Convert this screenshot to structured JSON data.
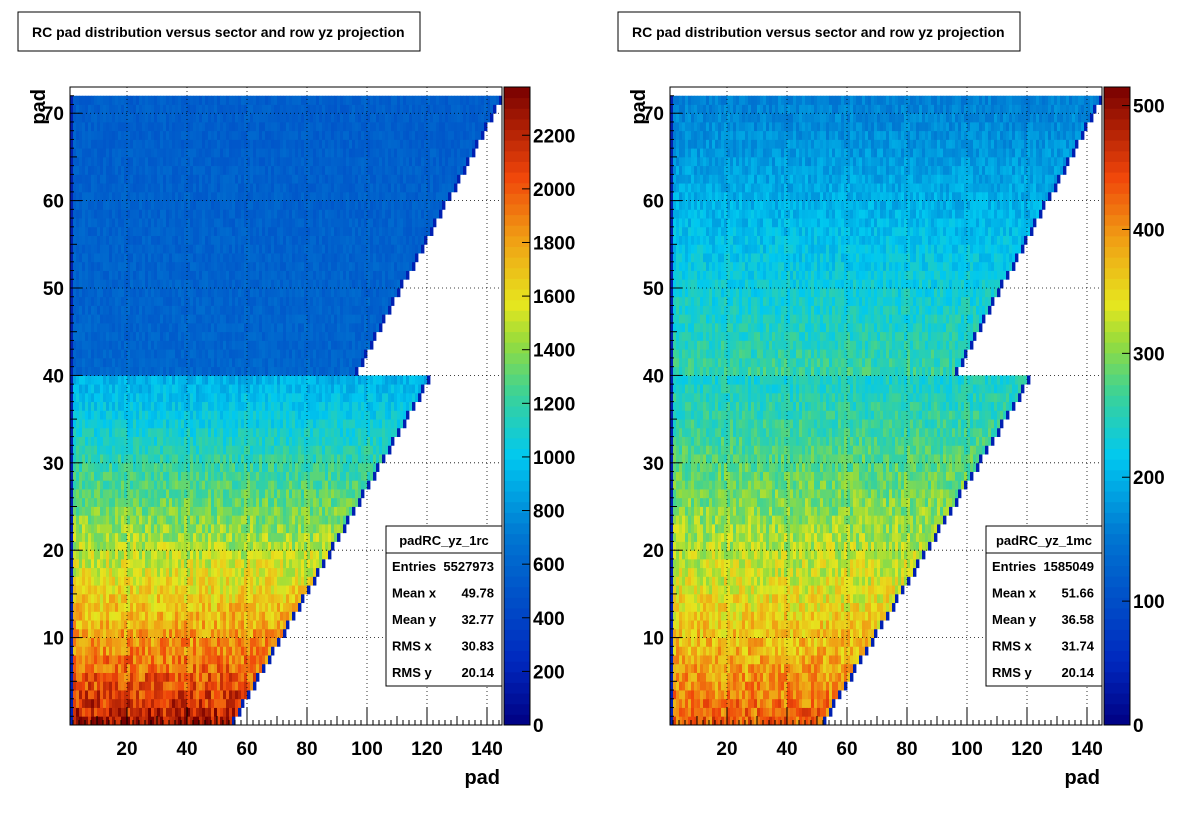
{
  "chart_data": [
    {
      "type": "heatmap",
      "title": "RC pad distribution versus sector and row yz projection",
      "xlabel": "pad",
      "ylabel": "pad",
      "xlim": [
        1,
        145
      ],
      "ylim": [
        0,
        73
      ],
      "x_ticks": [
        "20",
        "40",
        "60",
        "80",
        "100",
        "120",
        "140"
      ],
      "y_ticks": [
        "10",
        "20",
        "30",
        "40",
        "50",
        "60",
        "70"
      ],
      "grid": true,
      "colorbar": {
        "min": 0,
        "max": 2380,
        "ticks": [
          "0",
          "200",
          "400",
          "600",
          "800",
          "1000",
          "1200",
          "1400",
          "1600",
          "1800",
          "2000",
          "2200"
        ]
      },
      "stats": {
        "name": "padRC_yz_1rc",
        "rows": [
          {
            "label": "Entries",
            "value": "5527973"
          },
          {
            "label": "Mean x",
            "value": "49.78"
          },
          {
            "label": "Mean y",
            "value": "32.77"
          },
          {
            "label": "RMS x",
            "value": "30.83"
          },
          {
            "label": "RMS y",
            "value": "20.14"
          }
        ]
      },
      "shape": {
        "row_max": 72,
        "inner_split_row": 40,
        "inner_pad_at_row1": 55,
        "inner_pad_at_row40": 120,
        "outer_pad_at_row41": 96,
        "outer_pad_at_row72": 144
      },
      "intensity": {
        "low_row_value": 2250,
        "high_row_value": 720,
        "inner_top_value": 920,
        "outer_bottom_value": 600,
        "outer_top_value": 560
      }
    },
    {
      "type": "heatmap",
      "title": "RC pad distribution versus sector and row yz projection",
      "xlabel": "pad",
      "ylabel": "pad",
      "xlim": [
        1,
        145
      ],
      "ylim": [
        0,
        73
      ],
      "x_ticks": [
        "20",
        "40",
        "60",
        "80",
        "100",
        "120",
        "140"
      ],
      "y_ticks": [
        "10",
        "20",
        "30",
        "40",
        "50",
        "60",
        "70"
      ],
      "grid": true,
      "colorbar": {
        "min": 0,
        "max": 515,
        "ticks": [
          "0",
          "100",
          "200",
          "300",
          "400",
          "500"
        ]
      },
      "stats": {
        "name": "padRC_yz_1mc",
        "rows": [
          {
            "label": "Entries",
            "value": "1585049"
          },
          {
            "label": "Mean x",
            "value": "51.66"
          },
          {
            "label": "Mean y",
            "value": "36.58"
          },
          {
            "label": "RMS x",
            "value": "31.74"
          },
          {
            "label": "RMS y",
            "value": "20.14"
          }
        ]
      },
      "shape": {
        "row_max": 72,
        "inner_split_row": 40,
        "inner_pad_at_row1": 52,
        "inner_pad_at_row40": 120,
        "outer_pad_at_row41": 96,
        "outer_pad_at_row72": 144
      },
      "intensity": {
        "low_row_value": 430,
        "high_row_value": 230,
        "inner_top_value": 240,
        "outer_bottom_value": 260,
        "outer_top_value": 160
      }
    }
  ]
}
